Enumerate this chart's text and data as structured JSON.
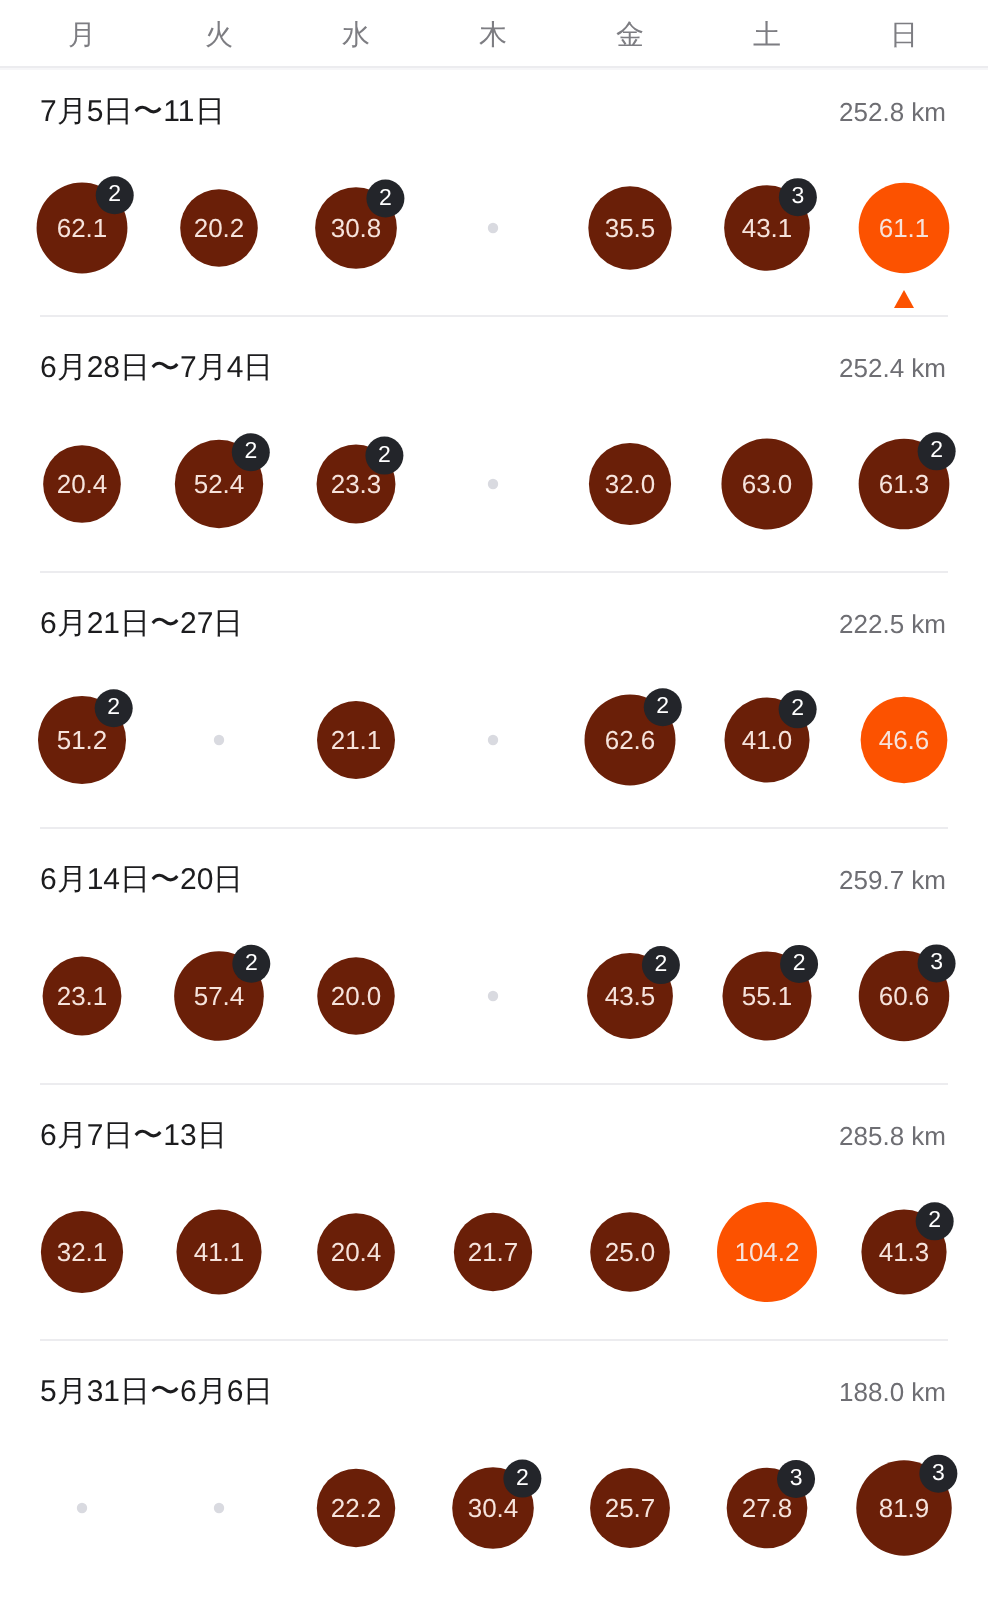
{
  "chart_data": {
    "type": "heatmap",
    "data_labels": true,
    "categories": [
      "月",
      "火",
      "水",
      "木",
      "金",
      "土",
      "日"
    ],
    "y_categories": [
      "7月5日〜11日",
      "6月28日〜7月4日",
      "6月21日〜27日",
      "6月14日〜20日",
      "6月7日〜13日",
      "5月31日〜6月6日"
    ],
    "y2_categories": [
      "252.8 km",
      "252.4 km",
      "222.5 km",
      "259.7 km",
      "285.8 km",
      "188.0 km"
    ],
    "cells": [
      [
        62.1,
        20.2,
        30.8,
        null,
        35.5,
        43.1,
        61.1
      ],
      [
        20.4,
        52.4,
        23.3,
        null,
        32.0,
        63.0,
        61.3
      ],
      [
        51.2,
        null,
        21.1,
        null,
        62.6,
        41.0,
        46.6
      ],
      [
        23.1,
        57.4,
        20.0,
        null,
        43.5,
        55.1,
        60.6
      ],
      [
        32.1,
        41.1,
        20.4,
        21.7,
        25.0,
        104.2,
        41.3
      ],
      [
        null,
        null,
        22.2,
        30.4,
        25.7,
        27.8,
        81.9
      ]
    ],
    "cell_labels": [
      [
        "62.1",
        "20.2",
        "30.8",
        null,
        "35.5",
        "43.1",
        "61.1"
      ],
      [
        "20.4",
        "52.4",
        "23.3",
        null,
        "32.0",
        "63.0",
        "61.3"
      ],
      [
        "51.2",
        null,
        "21.1",
        null,
        "62.6",
        "41.0",
        "46.6"
      ],
      [
        "23.1",
        "57.4",
        "20.0",
        null,
        "43.5",
        "55.1",
        "60.6"
      ],
      [
        "32.1",
        "41.1",
        "20.4",
        "21.7",
        "25.0",
        "104.2",
        "41.3"
      ],
      [
        null,
        null,
        "22.2",
        "30.4",
        "25.7",
        "27.8",
        "81.9"
      ]
    ],
    "colors": [
      [
        "#6a1f08",
        "#6a1f08",
        "#6a1f08",
        null,
        "#6a1f08",
        "#6a1f08",
        "#fc5200"
      ],
      [
        "#6a1f08",
        "#6a1f08",
        "#6a1f08",
        null,
        "#6a1f08",
        "#6a1f08",
        "#6a1f08"
      ],
      [
        "#6a1f08",
        null,
        "#6a1f08",
        null,
        "#6a1f08",
        "#6a1f08",
        "#fc5200"
      ],
      [
        "#6a1f08",
        "#6a1f08",
        "#6a1f08",
        null,
        "#6a1f08",
        "#6a1f08",
        "#6a1f08"
      ],
      [
        "#6a1f08",
        "#6a1f08",
        "#6a1f08",
        "#6a1f08",
        "#6a1f08",
        "#fc5200",
        "#6a1f08"
      ],
      [
        null,
        null,
        "#6a1f08",
        "#6a1f08",
        "#6a1f08",
        "#6a1f08",
        "#6a1f08"
      ]
    ],
    "annotations": [
      "2",
      "2",
      "3",
      "2",
      "2",
      "2",
      "2",
      "2",
      "2",
      "2",
      "2",
      "2",
      "3",
      "2",
      "2",
      "3",
      "3"
    ]
  }
}
